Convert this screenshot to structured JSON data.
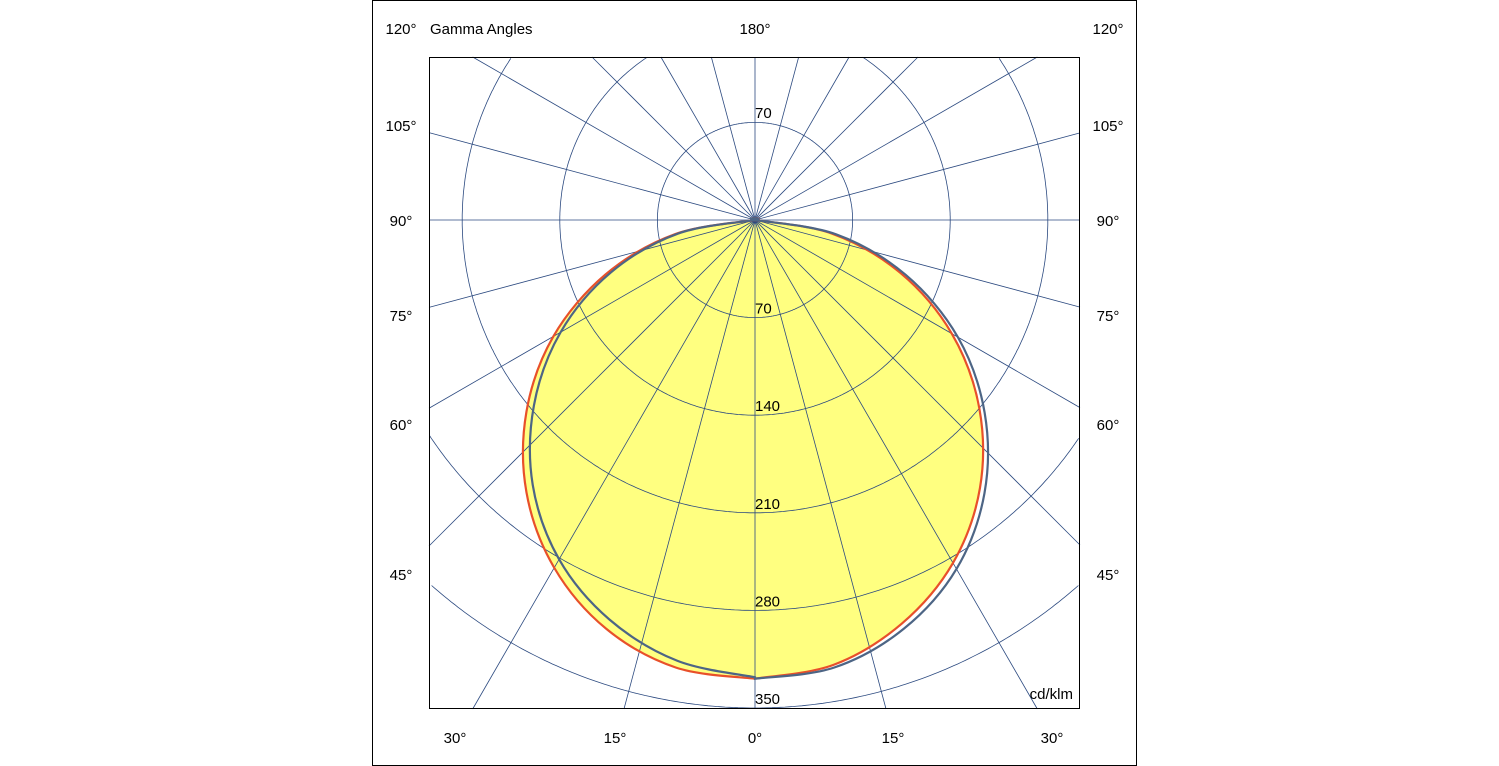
{
  "chart_data": {
    "type": "polar",
    "title": "Gamma Angles",
    "unit_label": "cd/klm",
    "top_angle_label": "180°",
    "side_angle_labels": [
      "120°",
      "105°",
      "90°",
      "75°",
      "60°",
      "45°"
    ],
    "bottom_angle_labels": [
      "30°",
      "15°",
      "0°",
      "15°",
      "30°"
    ],
    "ring_values": [
      70,
      140,
      210,
      280,
      350
    ],
    "ring_labels": [
      "70",
      "140",
      "210",
      "280",
      "350"
    ],
    "upper_ring_label": "70",
    "rmax": 350,
    "radial_step_deg": 15,
    "gamma": [
      0,
      10,
      20,
      30,
      40,
      50,
      60,
      70,
      80,
      90
    ],
    "series": [
      {
        "color": "#e8502a",
        "left": [
          329,
          326,
          312,
          288,
          255,
          214,
          167,
          114,
          58,
          0
        ],
        "right": [
          329,
          324,
          308,
          284,
          251,
          210,
          163,
          111,
          56,
          0
        ]
      },
      {
        "color": "#4d6585",
        "left": [
          328,
          321,
          305,
          281,
          248,
          207,
          161,
          110,
          56,
          0
        ],
        "right": [
          329,
          326,
          312,
          289,
          256,
          215,
          168,
          115,
          59,
          0
        ]
      }
    ],
    "colors": {
      "fill": "#ffff80",
      "grid": "#2c4a80",
      "frame": "#000000"
    }
  }
}
